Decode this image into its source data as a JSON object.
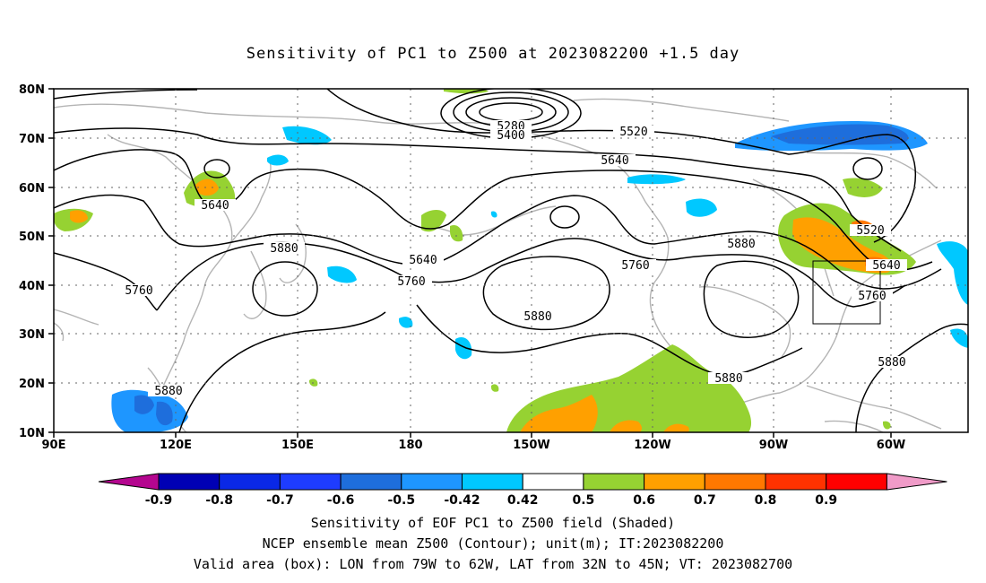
{
  "title": "Sensitivity of PC1 to Z500 at 2023082200 +1.5 day",
  "lat_ticks": [
    "80N",
    "70N",
    "60N",
    "50N",
    "40N",
    "30N",
    "20N",
    "10N"
  ],
  "lon_ticks": [
    "90E",
    "120E",
    "150E",
    "180",
    "150W",
    "120W",
    "90W",
    "60W"
  ],
  "contour_labels": [
    "5280",
    "5400",
    "5520",
    "5640",
    "5640",
    "5880",
    "5640",
    "5760",
    "5760",
    "5880",
    "5760",
    "5880",
    "5880",
    "5520",
    "5640",
    "5760",
    "5880",
    "5880"
  ],
  "colorbar": {
    "labels": [
      "-0.9",
      "-0.8",
      "-0.7",
      "-0.6",
      "-0.5",
      "-0.42",
      "0.42",
      "0.5",
      "0.6",
      "0.7",
      "0.8",
      "0.9"
    ],
    "colors": [
      "#b4068f",
      "#0000b4",
      "#0a28e6",
      "#1e3cff",
      "#1e6edc",
      "#1e96ff",
      "#00c8ff",
      "#ffffff",
      "#96d232",
      "#ffa000",
      "#ff7800",
      "#ff3200",
      "#ff0000",
      "#f09bc8"
    ]
  },
  "footer": {
    "line1": "Sensitivity of EOF PC1 to Z500 field (Shaded)",
    "line2": "NCEP ensemble mean Z500 (Contour); unit(m); IT:2023082200",
    "line3": "Valid area (box): LON from 79W to 62W, LAT from 32N to 45N; VT: 2023082700"
  }
}
